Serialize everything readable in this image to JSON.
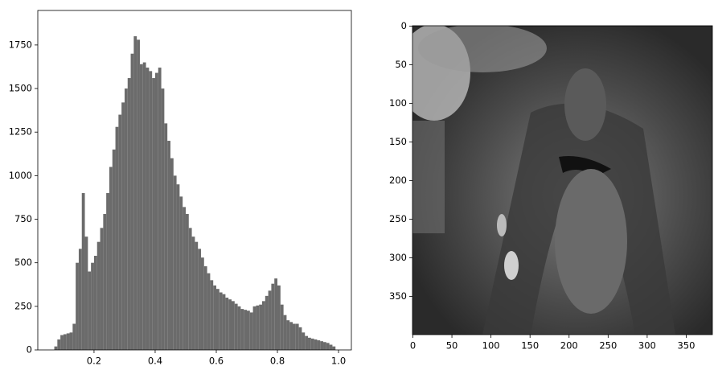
{
  "chart_data": [
    {
      "type": "histogram",
      "color": "#6b6b6b",
      "bins": [
        0.07,
        0.08,
        0.09,
        0.1,
        0.11,
        0.12,
        0.13,
        0.14,
        0.15,
        0.16,
        0.17,
        0.18,
        0.19,
        0.2,
        0.21,
        0.22,
        0.23,
        0.24,
        0.25,
        0.26,
        0.27,
        0.28,
        0.29,
        0.3,
        0.31,
        0.32,
        0.33,
        0.34,
        0.35,
        0.36,
        0.37,
        0.38,
        0.39,
        0.4,
        0.41,
        0.42,
        0.43,
        0.44,
        0.45,
        0.46,
        0.47,
        0.48,
        0.49,
        0.5,
        0.51,
        0.52,
        0.53,
        0.54,
        0.55,
        0.56,
        0.57,
        0.58,
        0.59,
        0.6,
        0.61,
        0.62,
        0.63,
        0.64,
        0.65,
        0.66,
        0.67,
        0.68,
        0.69,
        0.7,
        0.71,
        0.72,
        0.73,
        0.74,
        0.75,
        0.76,
        0.77,
        0.78,
        0.79,
        0.8,
        0.81,
        0.82,
        0.83,
        0.84,
        0.85,
        0.86,
        0.87,
        0.88,
        0.89,
        0.9,
        0.91,
        0.92,
        0.93,
        0.94,
        0.95,
        0.96,
        0.97,
        0.98,
        0.99
      ],
      "values": [
        20,
        60,
        85,
        90,
        95,
        100,
        150,
        500,
        580,
        900,
        650,
        450,
        500,
        540,
        620,
        700,
        780,
        900,
        1050,
        1150,
        1280,
        1350,
        1420,
        1500,
        1560,
        1700,
        1800,
        1780,
        1640,
        1650,
        1620,
        1600,
        1560,
        1590,
        1620,
        1500,
        1300,
        1200,
        1100,
        1000,
        950,
        880,
        820,
        780,
        700,
        650,
        620,
        580,
        530,
        480,
        440,
        400,
        370,
        350,
        330,
        320,
        300,
        290,
        280,
        265,
        250,
        235,
        230,
        225,
        215,
        250,
        255,
        260,
        280,
        310,
        340,
        380,
        410,
        370,
        260,
        200,
        170,
        160,
        150,
        150,
        130,
        100,
        80,
        70,
        65,
        60,
        55,
        50,
        45,
        40,
        30,
        20
      ],
      "xlim": [
        0.016,
        1.042
      ],
      "ylim": [
        0,
        1948
      ],
      "xticks": [
        0.2,
        0.4,
        0.6,
        0.8,
        {
          "value": 1,
          "label": "1.0"
        }
      ],
      "yticks": [
        0,
        250,
        500,
        750,
        1000,
        1250,
        1500,
        1750
      ]
    },
    {
      "type": "image",
      "xlim": [
        -0.5,
        383.5
      ],
      "ylim": [
        399.5,
        -0.5
      ],
      "xticks": [
        0,
        50,
        100,
        150,
        200,
        250,
        300,
        350
      ],
      "yticks": [
        0,
        50,
        100,
        150,
        200,
        250,
        300,
        350
      ]
    }
  ]
}
